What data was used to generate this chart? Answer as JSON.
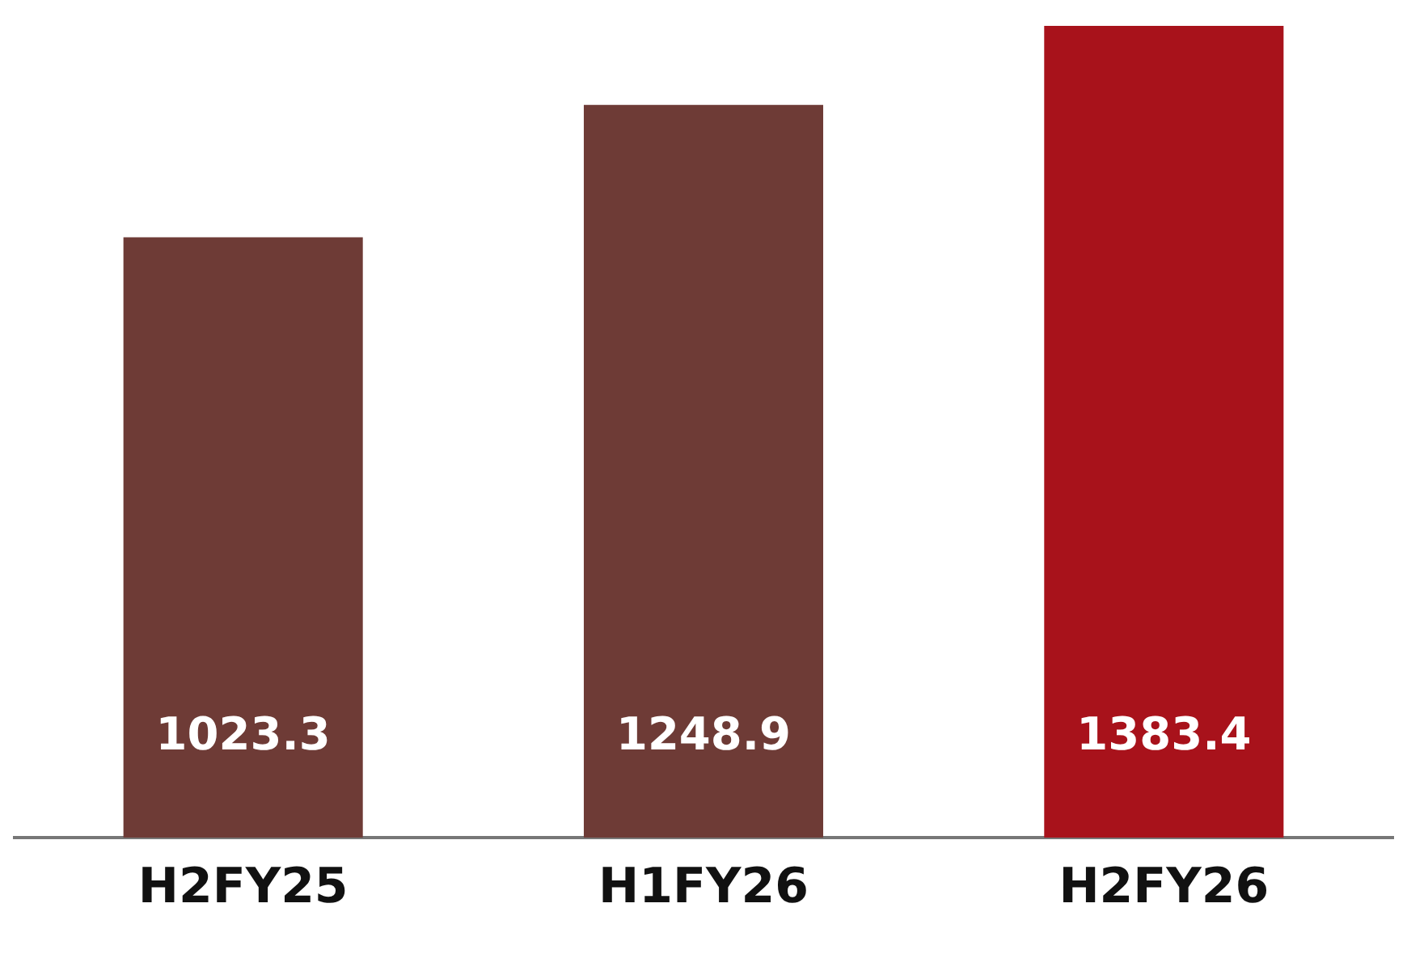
{
  "chart_data": {
    "type": "bar",
    "categories": [
      "H2FY25",
      "H1FY26",
      "H2FY26"
    ],
    "values": [
      1023.3,
      1248.9,
      1383.4
    ],
    "colors": [
      "#6e3b36",
      "#6e3b36",
      "#a8121b"
    ],
    "data_labels": true
  }
}
